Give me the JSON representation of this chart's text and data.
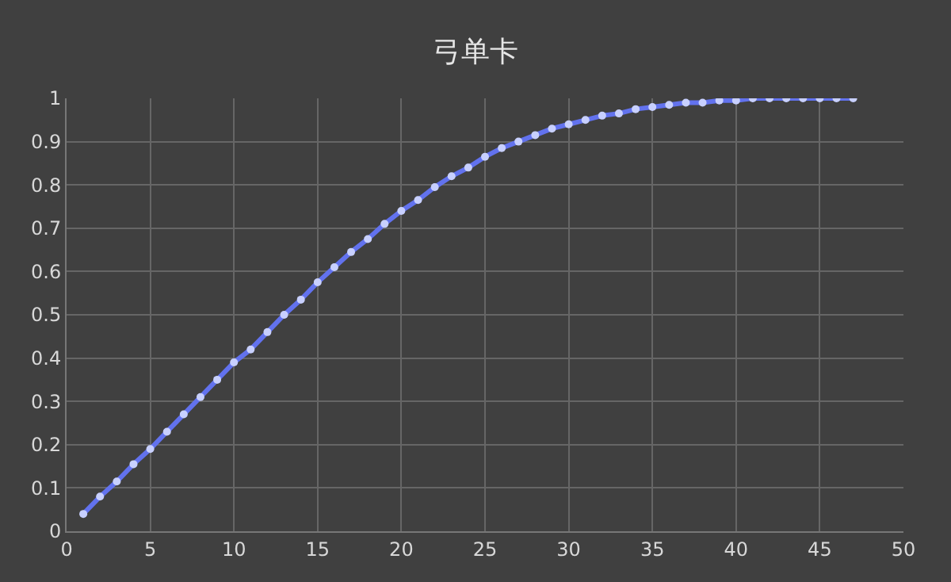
{
  "chart_data": {
    "type": "line",
    "title": "弓单卡",
    "x": [
      1,
      2,
      3,
      4,
      5,
      6,
      7,
      8,
      9,
      10,
      11,
      12,
      13,
      14,
      15,
      16,
      17,
      18,
      19,
      20,
      21,
      22,
      23,
      24,
      25,
      26,
      27,
      28,
      29,
      30,
      31,
      32,
      33,
      34,
      35,
      36,
      37,
      38,
      39,
      40,
      41,
      42,
      43,
      44,
      45,
      46,
      47
    ],
    "series": [
      {
        "color": "#6272ee",
        "values": [
          0.04,
          0.08,
          0.115,
          0.155,
          0.19,
          0.23,
          0.27,
          0.31,
          0.35,
          0.39,
          0.42,
          0.46,
          0.5,
          0.535,
          0.575,
          0.61,
          0.645,
          0.675,
          0.71,
          0.74,
          0.765,
          0.795,
          0.82,
          0.84,
          0.865,
          0.885,
          0.9,
          0.915,
          0.93,
          0.94,
          0.95,
          0.96,
          0.965,
          0.975,
          0.98,
          0.985,
          0.99,
          0.99,
          0.995,
          0.995,
          1,
          1,
          1,
          1,
          1,
          1,
          1
        ]
      }
    ],
    "xlim": [
      0,
      50
    ],
    "xticks": [
      0,
      5,
      10,
      15,
      20,
      25,
      30,
      35,
      40,
      45,
      50
    ],
    "ylim": [
      0,
      1
    ],
    "yticks": [
      0,
      0.1,
      0.2,
      0.3,
      0.4,
      0.5,
      0.6,
      0.7,
      0.8,
      0.9,
      1
    ],
    "grid": true,
    "marker": "circle",
    "line_style": "solid"
  }
}
